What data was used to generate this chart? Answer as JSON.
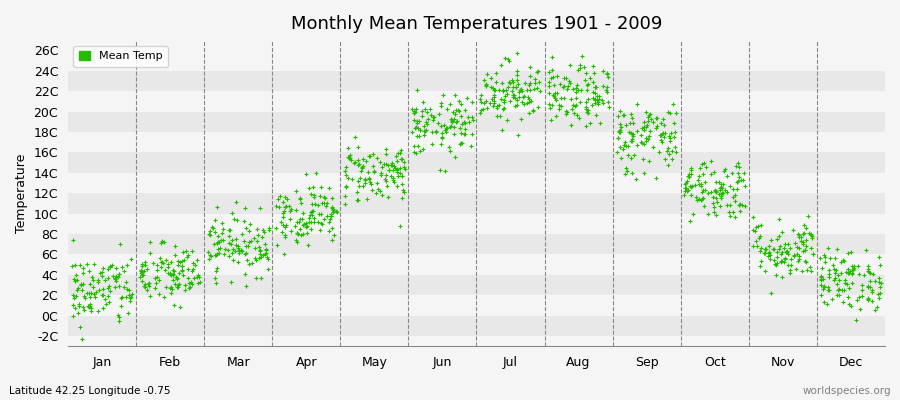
{
  "title": "Monthly Mean Temperatures 1901 - 2009",
  "ylabel": "Temperature",
  "bottom_left": "Latitude 42.25 Longitude -0.75",
  "bottom_right": "worldspecies.org",
  "legend_label": "Mean Temp",
  "dot_color": "#22bb00",
  "dot_size": 5,
  "background_color": "#f5f5f5",
  "band_color_light": "#f5f5f5",
  "band_color_dark": "#e8e8e8",
  "ylim": [
    -3,
    27
  ],
  "yticks": [
    -2,
    0,
    2,
    4,
    6,
    8,
    10,
    12,
    14,
    16,
    18,
    20,
    22,
    24,
    26
  ],
  "ytick_labels": [
    "-2C",
    "0C",
    "2C",
    "4C",
    "6C",
    "8C",
    "10C",
    "12C",
    "14C",
    "16C",
    "18C",
    "20C",
    "22C",
    "24C",
    "26C"
  ],
  "month_names": [
    "Jan",
    "Feb",
    "Mar",
    "Apr",
    "May",
    "Jun",
    "Jul",
    "Aug",
    "Sep",
    "Oct",
    "Nov",
    "Dec"
  ],
  "month_means": [
    2.5,
    4.0,
    7.0,
    10.0,
    14.0,
    18.5,
    22.0,
    21.5,
    17.5,
    12.5,
    6.5,
    3.5
  ],
  "month_stds": [
    1.8,
    1.5,
    1.5,
    1.5,
    1.5,
    1.5,
    1.5,
    1.5,
    1.8,
    1.5,
    1.5,
    1.5
  ],
  "n_years": 109,
  "seed": 42
}
